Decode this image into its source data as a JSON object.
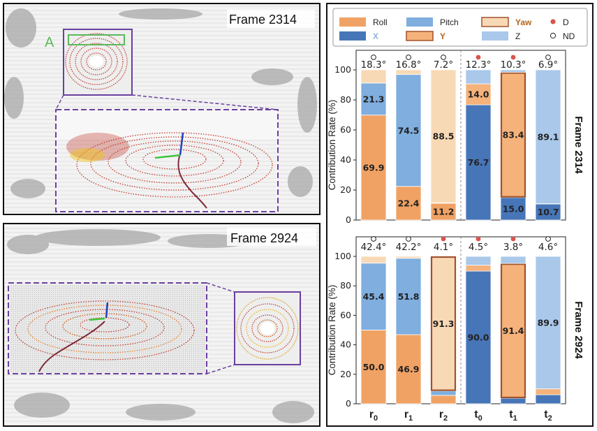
{
  "left_panels": [
    {
      "title": "Frame 2314",
      "region_label": "A"
    },
    {
      "title": "Frame 2924"
    }
  ],
  "legend": [
    {
      "name": "Roll",
      "color": "#F0A264",
      "name_color": "#222222",
      "bold": false,
      "marker": "rect"
    },
    {
      "name": "Pitch",
      "color": "#7FAEDF",
      "name_color": "#222222",
      "bold": false,
      "marker": "rect"
    },
    {
      "name": "Yaw",
      "color": "#F8D9B5",
      "name_color": "#B5651D",
      "bold": true,
      "marker": "rect-outlined"
    },
    {
      "name": "D",
      "color": "#D9534F",
      "name_color": "#222222",
      "bold": false,
      "marker": "dot-filled"
    },
    {
      "name": "X",
      "color": "#4776B8",
      "name_color": "#8FB4E0",
      "bold": true,
      "marker": "rect"
    },
    {
      "name": "Y",
      "color": "#F5B27A",
      "name_color": "#B5651D",
      "bold": true,
      "marker": "rect-outlined"
    },
    {
      "name": "Z",
      "color": "#A9C8EA",
      "name_color": "#222222",
      "bold": false,
      "marker": "rect"
    },
    {
      "name": "ND",
      "color": "#ffffff",
      "name_color": "#222222",
      "bold": false,
      "marker": "dot-open"
    }
  ],
  "chart_data": [
    {
      "type": "bar",
      "stacked": true,
      "frame_label": "Frame 2314",
      "ylabel": "Contribution Rate (%)",
      "ylim": [
        0,
        100
      ],
      "yticks": [
        0,
        20,
        40,
        60,
        80,
        100
      ],
      "categories": [
        "r0",
        "r1",
        "r2",
        "t0",
        "t1",
        "t2"
      ],
      "angles": [
        "18.3°",
        "16.8°",
        "7.2°",
        "12.3°",
        "10.3°",
        "6.9°"
      ],
      "markers": [
        "ND",
        "ND",
        "ND",
        "D",
        "D",
        "ND"
      ],
      "stacks": [
        [
          {
            "comp": "Roll",
            "v": 69.9,
            "label": "69.9"
          },
          {
            "comp": "Pitch",
            "v": 21.3,
            "label": "21.3"
          },
          {
            "comp": "Yaw",
            "v": 8.8,
            "label": ""
          }
        ],
        [
          {
            "comp": "Roll",
            "v": 22.4,
            "label": "22.4"
          },
          {
            "comp": "Pitch",
            "v": 74.5,
            "label": "74.5"
          },
          {
            "comp": "Yaw",
            "v": 3.1,
            "label": ""
          }
        ],
        [
          {
            "comp": "Roll",
            "v": 11.2,
            "label": "11.2"
          },
          {
            "comp": "Pitch",
            "v": 0.3,
            "label": ""
          },
          {
            "comp": "Yaw",
            "v": 88.5,
            "label": "88.5"
          }
        ],
        [
          {
            "comp": "X",
            "v": 76.7,
            "label": "76.7"
          },
          {
            "comp": "Y",
            "v": 14.0,
            "label": "14.0"
          },
          {
            "comp": "Z",
            "v": 9.3,
            "label": ""
          }
        ],
        [
          {
            "comp": "X",
            "v": 15.0,
            "label": "15.0"
          },
          {
            "comp": "Y",
            "v": 83.4,
            "label": "83.4"
          },
          {
            "comp": "Z",
            "v": 1.6,
            "label": ""
          }
        ],
        [
          {
            "comp": "X",
            "v": 10.7,
            "label": "10.7"
          },
          {
            "comp": "Y",
            "v": 0.2,
            "label": ""
          },
          {
            "comp": "Z",
            "v": 89.1,
            "label": "89.1"
          }
        ]
      ],
      "highlight": [
        "",
        "",
        "",
        "",
        "Y",
        ""
      ]
    },
    {
      "type": "bar",
      "stacked": true,
      "frame_label": "Frame 2924",
      "ylabel": "Contribution Rate (%)",
      "ylim": [
        0,
        100
      ],
      "yticks": [
        0,
        20,
        40,
        60,
        80,
        100
      ],
      "categories": [
        "r0",
        "r1",
        "r2",
        "t0",
        "t1",
        "t2"
      ],
      "angles": [
        "42.4°",
        "42.2°",
        "4.1°",
        "4.5°",
        "3.8°",
        "4.6°"
      ],
      "markers": [
        "ND",
        "ND",
        "D",
        "D",
        "D",
        "ND"
      ],
      "stacks": [
        [
          {
            "comp": "Roll",
            "v": 50.0,
            "label": "50.0"
          },
          {
            "comp": "Pitch",
            "v": 45.4,
            "label": "45.4"
          },
          {
            "comp": "Yaw",
            "v": 4.6,
            "label": ""
          }
        ],
        [
          {
            "comp": "Roll",
            "v": 46.9,
            "label": "46.9"
          },
          {
            "comp": "Pitch",
            "v": 51.8,
            "label": "51.8"
          },
          {
            "comp": "Yaw",
            "v": 1.3,
            "label": ""
          }
        ],
        [
          {
            "comp": "Roll",
            "v": 5.7,
            "label": ""
          },
          {
            "comp": "Pitch",
            "v": 3.0,
            "label": ""
          },
          {
            "comp": "Yaw",
            "v": 91.3,
            "label": "91.3"
          }
        ],
        [
          {
            "comp": "X",
            "v": 90.0,
            "label": "90.0"
          },
          {
            "comp": "Y",
            "v": 4.0,
            "label": ""
          },
          {
            "comp": "Z",
            "v": 6.0,
            "label": ""
          }
        ],
        [
          {
            "comp": "X",
            "v": 3.8,
            "label": ""
          },
          {
            "comp": "Y",
            "v": 91.4,
            "label": "91.4"
          },
          {
            "comp": "Z",
            "v": 4.8,
            "label": ""
          }
        ],
        [
          {
            "comp": "X",
            "v": 6.1,
            "label": ""
          },
          {
            "comp": "Y",
            "v": 4.0,
            "label": ""
          },
          {
            "comp": "Z",
            "v": 89.9,
            "label": "89.9"
          }
        ]
      ],
      "highlight": [
        "",
        "",
        "Yaw",
        "",
        "Y",
        ""
      ]
    }
  ]
}
